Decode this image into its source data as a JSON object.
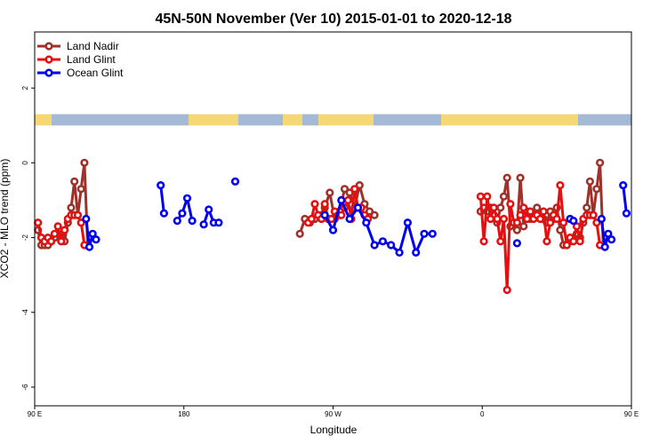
{
  "chart_data": {
    "type": "line",
    "title": "45N-50N November (Ver 10)   2015-01-01 to 2020-12-18",
    "xlabel": "Longitude",
    "ylabel": "XCO2 - MLO trend (ppm)",
    "xlim": [
      90,
      450
    ],
    "ylim": [
      -6.5,
      3.5
    ],
    "x_ticks": [
      {
        "value": 90,
        "label": "90 E"
      },
      {
        "value": 180,
        "label": "180"
      },
      {
        "value": 270,
        "label": "90 W"
      },
      {
        "value": 360,
        "label": "0"
      },
      {
        "value": 450,
        "label": "90 E"
      },
      {
        "value": 540,
        "label": "180"
      }
    ],
    "y_ticks": [
      {
        "value": 2,
        "label": "2"
      },
      {
        "value": 0,
        "label": "0"
      },
      {
        "value": -2,
        "label": "-2"
      },
      {
        "value": -4,
        "label": "-4"
      },
      {
        "value": -6,
        "label": "-6"
      }
    ],
    "legend_position": "top-left",
    "land_strip": {
      "ymin": 1.0,
      "ymax": 1.3,
      "land_color": "#f6d775",
      "ocean_color": "#a3b9d6"
    },
    "series": [
      {
        "name": "Land Nadir",
        "color": "#a0302a",
        "segments": [
          [
            [
              92,
              -1.8
            ],
            [
              94,
              -2.2
            ],
            [
              96,
              -2.2
            ],
            [
              98,
              -2.2
            ],
            [
              100,
              -2.1
            ],
            [
              102,
              -2.0
            ],
            [
              104,
              -1.9
            ],
            [
              106,
              -2.0
            ],
            [
              108,
              -2.1
            ],
            [
              110,
              -1.6
            ],
            [
              112,
              -1.2
            ],
            [
              114,
              -0.5
            ],
            [
              116,
              -1.4
            ],
            [
              118,
              -0.7
            ],
            [
              120,
              0.0
            ],
            [
              122,
              -2.2
            ]
          ],
          [
            [
              250,
              -1.9
            ],
            [
              253,
              -1.5
            ],
            [
              256,
              -1.6
            ],
            [
              259,
              -1.5
            ],
            [
              262,
              -1.4
            ],
            [
              265,
              -1.2
            ],
            [
              268,
              -0.8
            ],
            [
              271,
              -1.5
            ],
            [
              274,
              -1.3
            ],
            [
              277,
              -0.7
            ],
            [
              280,
              -0.8
            ],
            [
              283,
              -1.2
            ],
            [
              286,
              -0.6
            ],
            [
              289,
              -1.1
            ],
            [
              292,
              -1.3
            ],
            [
              295,
              -1.4
            ]
          ],
          [
            [
              359,
              -1.3
            ],
            [
              361,
              -1.2
            ],
            [
              363,
              -1.3
            ],
            [
              365,
              -1.2
            ],
            [
              367,
              -1.4
            ],
            [
              369,
              -1.6
            ],
            [
              371,
              -1.2
            ],
            [
              373,
              -0.9
            ],
            [
              375,
              -0.4
            ],
            [
              377,
              -1.7
            ],
            [
              379,
              -1.6
            ],
            [
              381,
              -1.8
            ],
            [
              383,
              -0.4
            ],
            [
              385,
              -1.7
            ],
            [
              387,
              -1.3
            ],
            [
              389,
              -1.5
            ],
            [
              391,
              -1.4
            ],
            [
              393,
              -1.2
            ],
            [
              395,
              -1.4
            ],
            [
              397,
              -1.5
            ],
            [
              399,
              -1.6
            ],
            [
              401,
              -1.3
            ],
            [
              403,
              -1.5
            ],
            [
              405,
              -1.2
            ],
            [
              407,
              -1.8
            ],
            [
              409,
              -2.2
            ],
            [
              411,
              -2.2
            ],
            [
              413,
              -2.1
            ],
            [
              415,
              -2.0
            ],
            [
              417,
              -1.9
            ],
            [
              419,
              -2.0
            ],
            [
              421,
              -1.6
            ],
            [
              423,
              -1.2
            ],
            [
              425,
              -0.5
            ],
            [
              427,
              -1.4
            ],
            [
              429,
              -0.7
            ],
            [
              431,
              0.0
            ],
            [
              433,
              -2.2
            ]
          ]
        ]
      },
      {
        "name": "Land Glint",
        "color": "#e41010",
        "segments": [
          [
            [
              92,
              -1.6
            ],
            [
              94,
              -2.0
            ],
            [
              96,
              -2.1
            ],
            [
              98,
              -2.0
            ],
            [
              100,
              -2.1
            ],
            [
              102,
              -1.9
            ],
            [
              104,
              -1.7
            ],
            [
              106,
              -2.1
            ],
            [
              108,
              -1.8
            ],
            [
              110,
              -1.5
            ],
            [
              112,
              -1.4
            ],
            [
              114,
              -1.4
            ],
            [
              116,
              -1.4
            ],
            [
              118,
              -1.6
            ],
            [
              120,
              -2.2
            ]
          ],
          [
            [
              255,
              -1.6
            ],
            [
              257,
              -1.5
            ],
            [
              259,
              -1.1
            ],
            [
              261,
              -1.4
            ],
            [
              263,
              -1.5
            ],
            [
              265,
              -1.1
            ],
            [
              267,
              -1.5
            ],
            [
              269,
              -1.5
            ],
            [
              271,
              -1.3
            ],
            [
              273,
              -1.4
            ],
            [
              275,
              -1.4
            ],
            [
              277,
              -1.2
            ],
            [
              279,
              -1.0
            ],
            [
              281,
              -1.5
            ],
            [
              283,
              -0.7
            ],
            [
              285,
              -1.2
            ],
            [
              287,
              -1.2
            ],
            [
              289,
              -1.4
            ],
            [
              291,
              -1.5
            ]
          ],
          [
            [
              359,
              -0.9
            ],
            [
              361,
              -2.1
            ],
            [
              363,
              -0.9
            ],
            [
              365,
              -1.5
            ],
            [
              367,
              -1.2
            ],
            [
              369,
              -1.5
            ],
            [
              371,
              -2.1
            ],
            [
              373,
              -1.5
            ],
            [
              375,
              -3.4
            ],
            [
              377,
              -1.1
            ],
            [
              379,
              -1.6
            ],
            [
              381,
              -1.6
            ],
            [
              383,
              -1.4
            ],
            [
              385,
              -1.2
            ],
            [
              387,
              -1.5
            ],
            [
              389,
              -1.3
            ],
            [
              391,
              -1.5
            ],
            [
              393,
              -1.4
            ],
            [
              395,
              -1.5
            ],
            [
              397,
              -1.3
            ],
            [
              399,
              -2.1
            ],
            [
              401,
              -1.6
            ],
            [
              403,
              -1.4
            ],
            [
              405,
              -1.5
            ],
            [
              407,
              -0.6
            ],
            [
              409,
              -1.6
            ],
            [
              411,
              -2.2
            ],
            [
              413,
              -2.0
            ],
            [
              415,
              -2.1
            ],
            [
              417,
              -1.7
            ],
            [
              419,
              -2.1
            ],
            [
              421,
              -1.5
            ],
            [
              423,
              -1.4
            ],
            [
              425,
              -1.4
            ],
            [
              427,
              -1.4
            ],
            [
              429,
              -1.6
            ],
            [
              431,
              -2.2
            ]
          ]
        ]
      },
      {
        "name": "Ocean Glint",
        "color": "#0000ee",
        "segments": [
          [
            [
              121,
              -1.5
            ],
            [
              123,
              -2.25
            ],
            [
              125,
              -1.9
            ],
            [
              127,
              -2.05
            ]
          ],
          [
            [
              166,
              -0.6
            ],
            [
              168,
              -1.35
            ]
          ],
          [
            [
              176,
              -1.55
            ],
            [
              179,
              -1.35
            ],
            [
              182,
              -0.95
            ],
            [
              185,
              -1.55
            ]
          ],
          [
            [
              192,
              -1.65
            ],
            [
              195,
              -1.25
            ],
            [
              198,
              -1.6
            ],
            [
              201,
              -1.6
            ]
          ],
          [
            [
              211,
              -0.5
            ]
          ],
          [
            [
              265,
              -1.4
            ],
            [
              270,
              -1.8
            ],
            [
              275,
              -1.0
            ],
            [
              280,
              -1.5
            ],
            [
              285,
              -1.2
            ],
            [
              290,
              -1.6
            ],
            [
              295,
              -2.2
            ],
            [
              300,
              -2.1
            ],
            [
              305,
              -2.2
            ],
            [
              310,
              -2.4
            ],
            [
              315,
              -1.6
            ],
            [
              320,
              -2.4
            ],
            [
              325,
              -1.9
            ],
            [
              330,
              -1.9
            ]
          ],
          [
            [
              381,
              -2.15
            ]
          ],
          [
            [
              413,
              -1.5
            ],
            [
              415,
              -1.55
            ]
          ],
          [
            [
              432,
              -1.5
            ],
            [
              434,
              -2.25
            ],
            [
              436,
              -1.9
            ],
            [
              438,
              -2.05
            ]
          ],
          [
            [
              445,
              -0.6
            ],
            [
              447,
              -1.35
            ]
          ]
        ]
      }
    ]
  }
}
